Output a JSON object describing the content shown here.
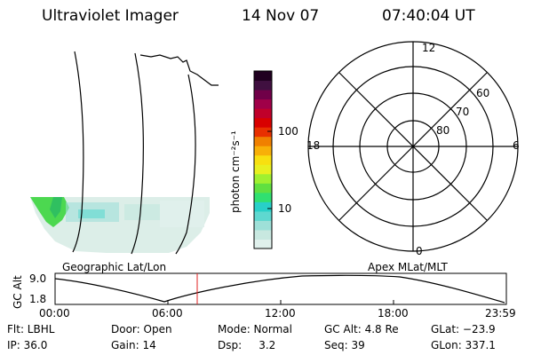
{
  "header": {
    "instrument": "Ultraviolet Imager",
    "date": "14 Nov 07",
    "time": "07:40:04 UT"
  },
  "colorbar": {
    "unit_label": "photon cm⁻²s⁻¹",
    "tick_100": "100",
    "tick_10": "10",
    "colors": [
      "#e0f0ec",
      "#c8e8e0",
      "#9ee0d8",
      "#5ed8d0",
      "#28d0c8",
      "#30e070",
      "#60e040",
      "#a0f030",
      "#e8f020",
      "#f8e010",
      "#f8b008",
      "#f08000",
      "#e83000",
      "#d80000",
      "#c0002a",
      "#a00048",
      "#700048",
      "#401040",
      "#200020"
    ]
  },
  "polar_plot": {
    "mlt_labels": {
      "top": "12",
      "left": "18",
      "right": "6",
      "bottom": "0"
    },
    "lat_labels": [
      "60",
      "70",
      "80"
    ]
  },
  "map_caption": "Geographic Lat/Lon",
  "polar_caption": "Apex MLat/MLT",
  "altitude_plot": {
    "ylabel": "GC Alt",
    "ytick_top": "9.0",
    "ytick_bottom": "1.8",
    "xticks": [
      "00:00",
      "06:00",
      "12:00",
      "18:00",
      "23:59"
    ]
  },
  "status": {
    "row1": {
      "filter": "Flt: LBHL",
      "door": "Door: Open",
      "mode": "Mode: Normal",
      "gc_alt": "GC Alt: 4.8 Re",
      "glat": "GLat: −23.9"
    },
    "row2": {
      "ip": "IP: 36.0",
      "gain": "Gain: 14",
      "dsp": "Dsp:     3.2",
      "seq": "Seq: 39",
      "glon": "GLon: 337.1"
    }
  }
}
